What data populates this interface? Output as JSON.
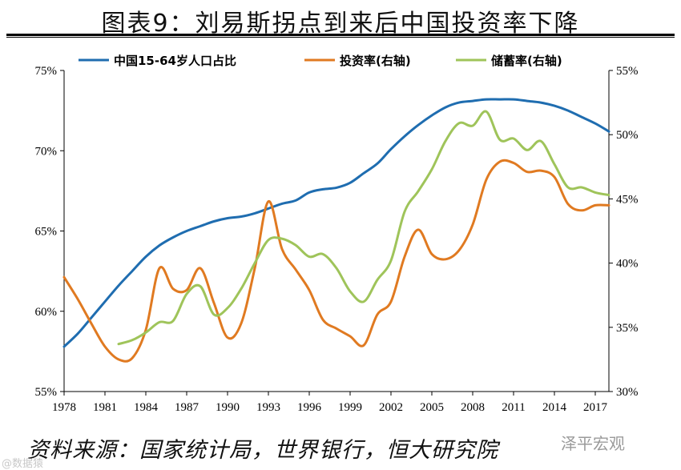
{
  "title": "图表9：刘易斯拐点到来后中国投资率下降",
  "source_note": "资料来源：国家统计局，世界银行，恒大研究院",
  "watermark_left": "@数据猿",
  "watermark_right": "泽平宏观",
  "colors": {
    "working_age": "#1f6db0",
    "investment": "#e07a21",
    "savings": "#9fc45a"
  },
  "chart_data": {
    "type": "line",
    "x_ticks": [
      1978,
      1981,
      1984,
      1987,
      1990,
      1993,
      1996,
      1999,
      2002,
      2005,
      2008,
      2011,
      2014,
      2017
    ],
    "xlim": [
      1978,
      2018
    ],
    "y_left": {
      "ticks": [
        "55%",
        "60%",
        "65%",
        "70%",
        "75%"
      ],
      "lim": [
        55,
        75
      ]
    },
    "y_right": {
      "ticks": [
        "30%",
        "35%",
        "40%",
        "45%",
        "50%",
        "55%"
      ],
      "lim": [
        30,
        55
      ]
    },
    "series": [
      {
        "name": "中国15-64岁人口占比",
        "axis": "left",
        "color": "#1f6db0",
        "x": [
          1978,
          1979,
          1980,
          1981,
          1982,
          1983,
          1984,
          1985,
          1986,
          1987,
          1988,
          1989,
          1990,
          1991,
          1992,
          1993,
          1994,
          1995,
          1996,
          1997,
          1998,
          1999,
          2000,
          2001,
          2002,
          2003,
          2004,
          2005,
          2006,
          2007,
          2008,
          2009,
          2010,
          2011,
          2012,
          2013,
          2014,
          2015,
          2016,
          2017,
          2018
        ],
        "values": [
          57.8,
          58.6,
          59.6,
          60.6,
          61.6,
          62.5,
          63.4,
          64.1,
          64.6,
          65.0,
          65.3,
          65.6,
          65.8,
          65.9,
          66.1,
          66.4,
          66.7,
          66.9,
          67.4,
          67.6,
          67.7,
          68.0,
          68.6,
          69.2,
          70.1,
          70.9,
          71.6,
          72.2,
          72.7,
          73.0,
          73.1,
          73.2,
          73.2,
          73.2,
          73.1,
          73.0,
          72.8,
          72.5,
          72.1,
          71.7,
          71.2
        ]
      },
      {
        "name": "投资率(右轴)",
        "axis": "right",
        "color": "#e07a21",
        "x": [
          1978,
          1979,
          1980,
          1981,
          1982,
          1983,
          1984,
          1985,
          1986,
          1987,
          1988,
          1989,
          1990,
          1991,
          1992,
          1993,
          1994,
          1995,
          1996,
          1997,
          1998,
          1999,
          2000,
          2001,
          2002,
          2003,
          2004,
          2005,
          2006,
          2007,
          2008,
          2009,
          2010,
          2011,
          2012,
          2013,
          2014,
          2015,
          2016,
          2017,
          2018
        ],
        "values": [
          38.9,
          37.2,
          35.3,
          33.5,
          32.5,
          32.6,
          34.8,
          39.6,
          38.0,
          37.9,
          39.6,
          36.9,
          34.2,
          35.3,
          39.6,
          44.8,
          41.1,
          39.5,
          37.9,
          35.6,
          34.9,
          34.3,
          33.6,
          36.0,
          37.0,
          40.5,
          42.6,
          40.7,
          40.3,
          41.0,
          43.0,
          46.5,
          47.9,
          47.8,
          47.1,
          47.2,
          46.7,
          44.6,
          44.1,
          44.5,
          44.5
        ]
      },
      {
        "name": "储蓄率(右轴)",
        "axis": "right",
        "color": "#9fc45a",
        "x": [
          1982,
          1983,
          1984,
          1985,
          1986,
          1987,
          1988,
          1989,
          1990,
          1991,
          1992,
          1993,
          1994,
          1995,
          1996,
          1997,
          1998,
          1999,
          2000,
          2001,
          2002,
          2003,
          2004,
          2005,
          2006,
          2007,
          2008,
          2009,
          2010,
          2011,
          2012,
          2013,
          2014,
          2015,
          2016,
          2017,
          2018
        ],
        "values": [
          33.7,
          34.0,
          34.6,
          35.4,
          35.5,
          37.6,
          38.2,
          36.0,
          36.5,
          38.0,
          40.0,
          41.8,
          41.9,
          41.4,
          40.5,
          40.7,
          39.6,
          37.8,
          37.0,
          38.7,
          40.2,
          44.0,
          45.6,
          47.3,
          49.5,
          50.9,
          50.7,
          51.8,
          49.6,
          49.7,
          48.8,
          49.5,
          47.7,
          45.9,
          45.9,
          45.5,
          45.3
        ]
      }
    ]
  }
}
